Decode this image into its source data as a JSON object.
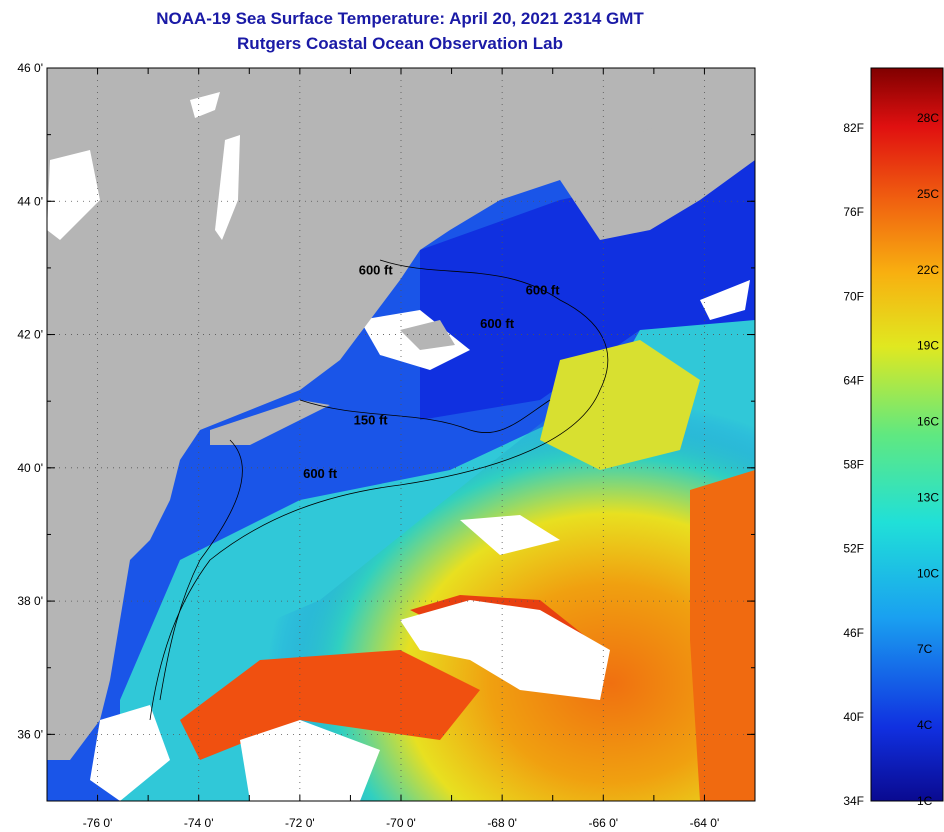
{
  "title": {
    "line1": "NOAA-19 Sea Surface Temperature:  April 20, 2021 2314 GMT",
    "line2": "Rutgers Coastal Ocean Observation Lab"
  },
  "map": {
    "lat_labels": [
      "46 0'",
      "44 0'",
      "42 0'",
      "40 0'",
      "38 0'",
      "36 0'"
    ],
    "lon_labels": [
      "-76 0'",
      "-74 0'",
      "-72 0'",
      "-70 0'",
      "-68 0'",
      "-66 0'",
      "-64 0'"
    ],
    "lat_range": [
      35,
      46
    ],
    "lon_range": [
      -77,
      -63
    ],
    "depth_contour_labels": [
      {
        "text": "600 ft",
        "lon": -70.5,
        "lat": 42.9
      },
      {
        "text": "600 ft",
        "lon": -67.2,
        "lat": 42.6
      },
      {
        "text": "600 ft",
        "lon": -68.1,
        "lat": 42.1
      },
      {
        "text": "150 ft",
        "lon": -70.6,
        "lat": 40.65
      },
      {
        "text": "600 ft",
        "lon": -71.6,
        "lat": 39.85
      }
    ],
    "colors": {
      "land": "#b5b5b5",
      "cloud": "#ffffff",
      "cold_water": "#1536e0",
      "mid_water": "#20c8e0",
      "warm_water": "#e8e020",
      "hot_water": "#f05010"
    }
  },
  "colorbar": {
    "f_labels": [
      "82F",
      "76F",
      "70F",
      "64F",
      "58F",
      "52F",
      "46F",
      "40F",
      "34F"
    ],
    "c_labels": [
      "28C",
      "25C",
      "22C",
      "19C",
      "16C",
      "13C",
      "10C",
      "7C",
      "4C",
      "1C"
    ]
  }
}
